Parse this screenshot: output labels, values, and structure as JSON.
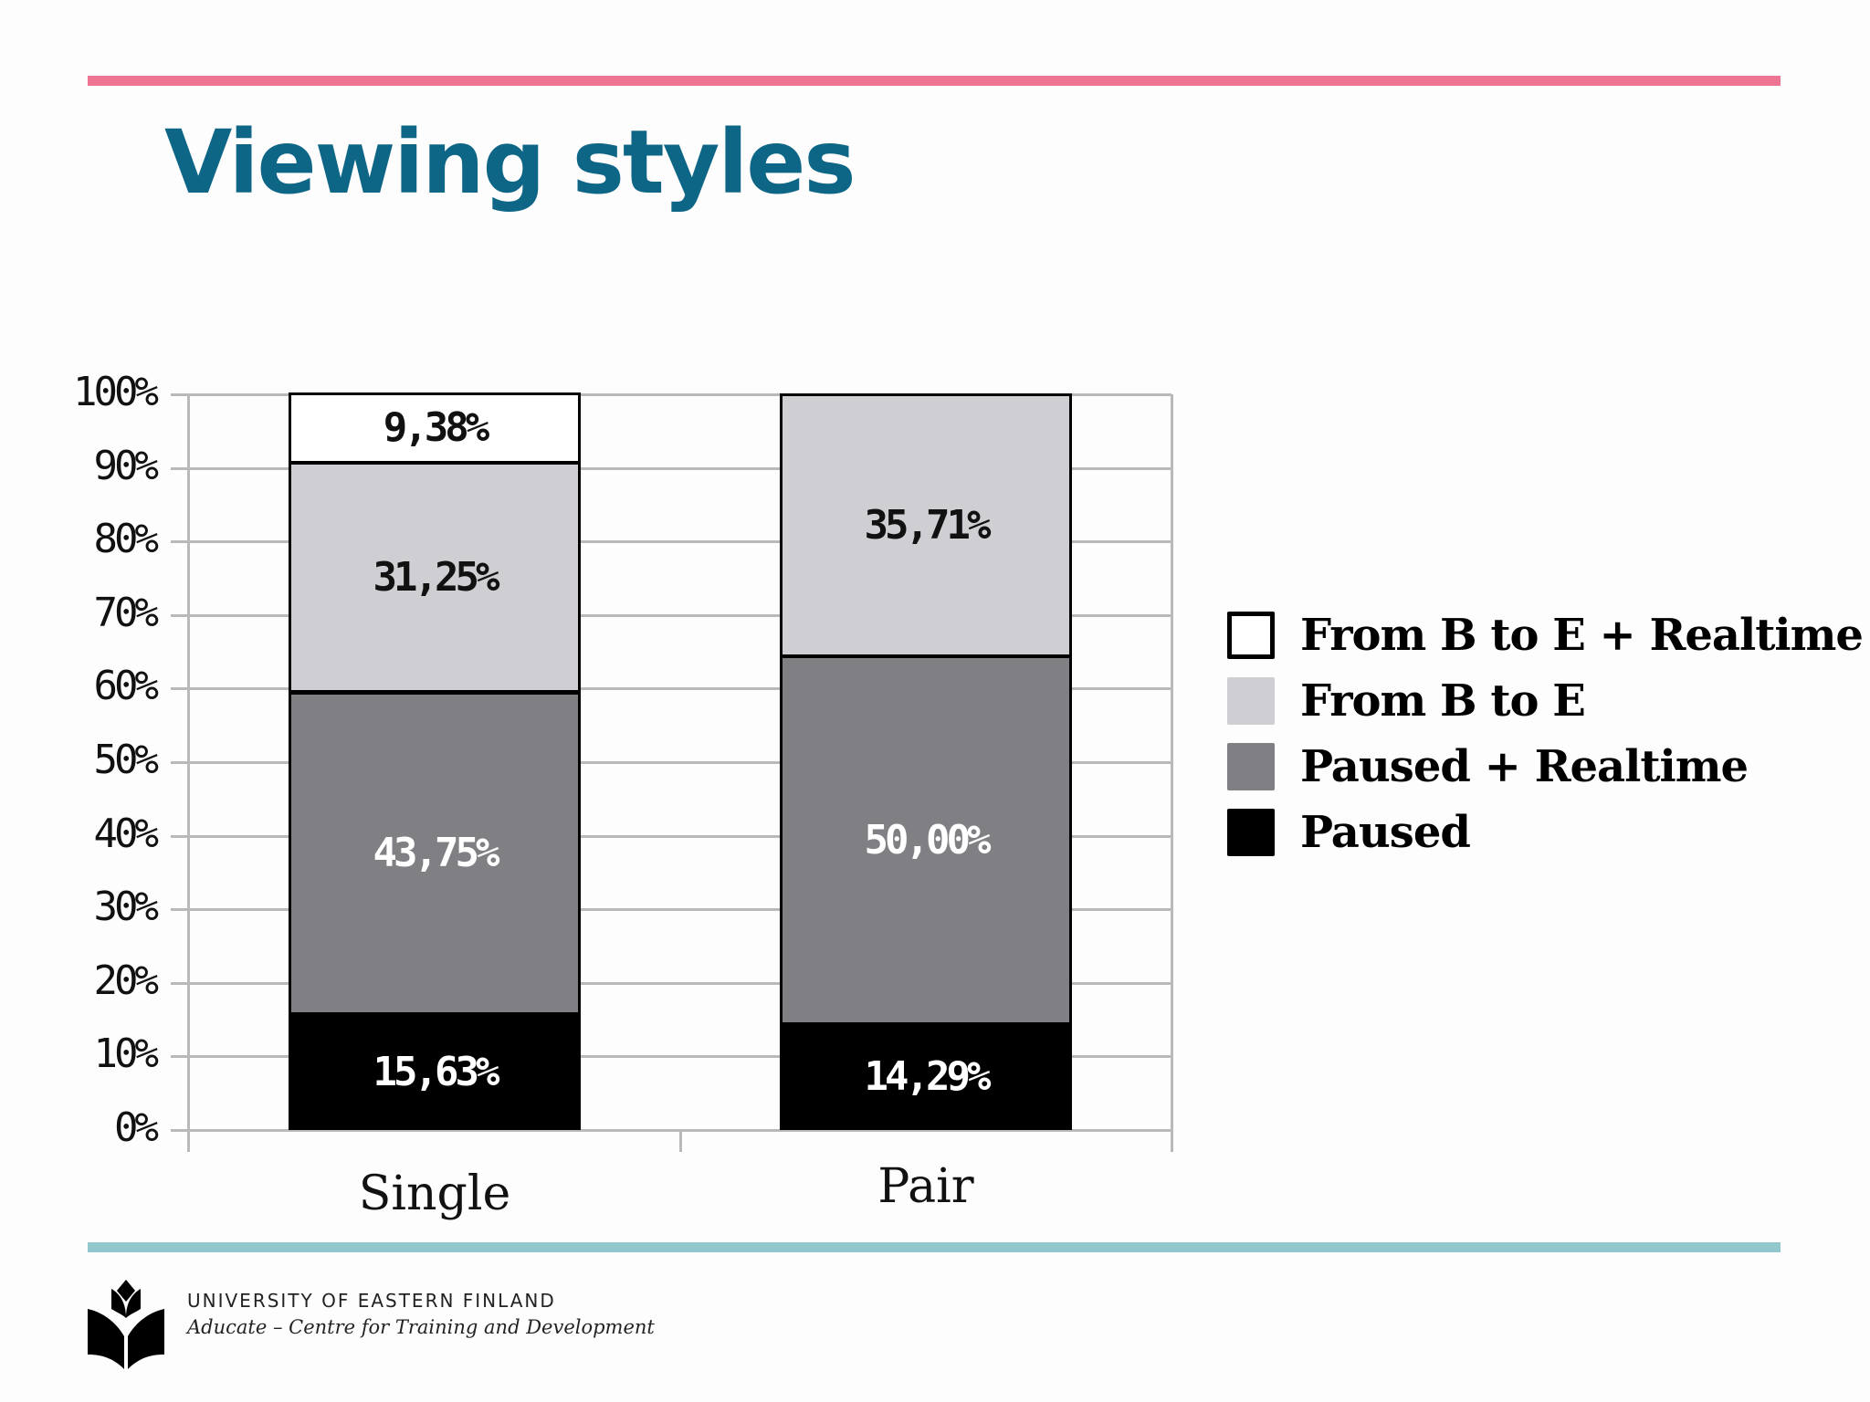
{
  "slide": {
    "title": "Viewing styles",
    "colors": {
      "title": "#0e6687",
      "top_rule": "#ee7493",
      "bottom_rule": "#92c7cd",
      "grid": "#b9b9b9"
    },
    "footer": {
      "institution": "UNIVERSITY OF EASTERN FINLAND",
      "unit": "Aducate – Centre for Training and Development",
      "logo_icon": "uef-logo-icon"
    }
  },
  "chart_data": {
    "type": "bar",
    "stacked": true,
    "normalized": true,
    "title": "Viewing styles",
    "xlabel": "",
    "ylabel": "",
    "ylim": [
      0,
      100
    ],
    "yticks": [
      "0%",
      "10%",
      "20%",
      "30%",
      "40%",
      "50%",
      "60%",
      "70%",
      "80%",
      "90%",
      "100%"
    ],
    "categories": [
      "Single",
      "Pair"
    ],
    "series": [
      {
        "name": "Paused",
        "color": "#000000",
        "label_color": "#ffffff",
        "values": [
          15.63,
          14.29
        ],
        "labels": [
          "15,63%",
          "14,29%"
        ]
      },
      {
        "name": "Paused + Realtime",
        "color": "#807f83",
        "label_color": "#ffffff",
        "values": [
          43.75,
          50.0
        ],
        "labels": [
          "43,75%",
          "50,00%"
        ]
      },
      {
        "name": "From B to E",
        "color": "#cfced3",
        "label_color": "#111111",
        "values": [
          31.25,
          35.71
        ],
        "labels": [
          "31,25%",
          "35,71%"
        ]
      },
      {
        "name": "From B to E + Realtime",
        "color": "#ffffff",
        "label_color": "#111111",
        "values": [
          9.38,
          0
        ],
        "labels": [
          "9,38%",
          ""
        ]
      }
    ],
    "legend": {
      "position": "right",
      "entries": [
        "From B to E + Realtime",
        "From B to E",
        "Paused + Realtime",
        "Paused"
      ]
    },
    "grid": true
  }
}
